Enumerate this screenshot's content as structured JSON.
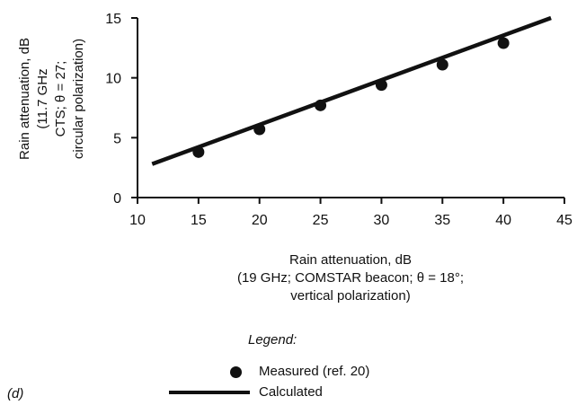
{
  "chart_data": {
    "type": "scatter",
    "panel_label": "(d)",
    "xlabel_lines": [
      "Rain attenuation, dB",
      "(19 GHz; COMSTAR beacon; θ = 18°;",
      "vertical polarization)"
    ],
    "ylabel_lines": [
      "Rain attenuation, dB",
      "(11.7 GHz",
      "CTS; θ = 27;",
      "circular polarization)"
    ],
    "xlim": [
      10,
      45
    ],
    "ylim": [
      0,
      15
    ],
    "xticks": [
      10,
      15,
      20,
      25,
      30,
      35,
      40,
      45
    ],
    "yticks": [
      0,
      5,
      10,
      15
    ],
    "grid": false,
    "series": [
      {
        "name": "Measured (ref. 20)",
        "kind": "scatter",
        "x": [
          15,
          20,
          25,
          30,
          35,
          40
        ],
        "y": [
          3.8,
          5.7,
          7.7,
          9.4,
          11.1,
          12.9
        ]
      },
      {
        "name": "Calculated",
        "kind": "line",
        "x": [
          11.2,
          43.9
        ],
        "y": [
          2.8,
          15.0
        ]
      }
    ],
    "legend": {
      "title": "Legend:",
      "placement": "bottom"
    }
  }
}
